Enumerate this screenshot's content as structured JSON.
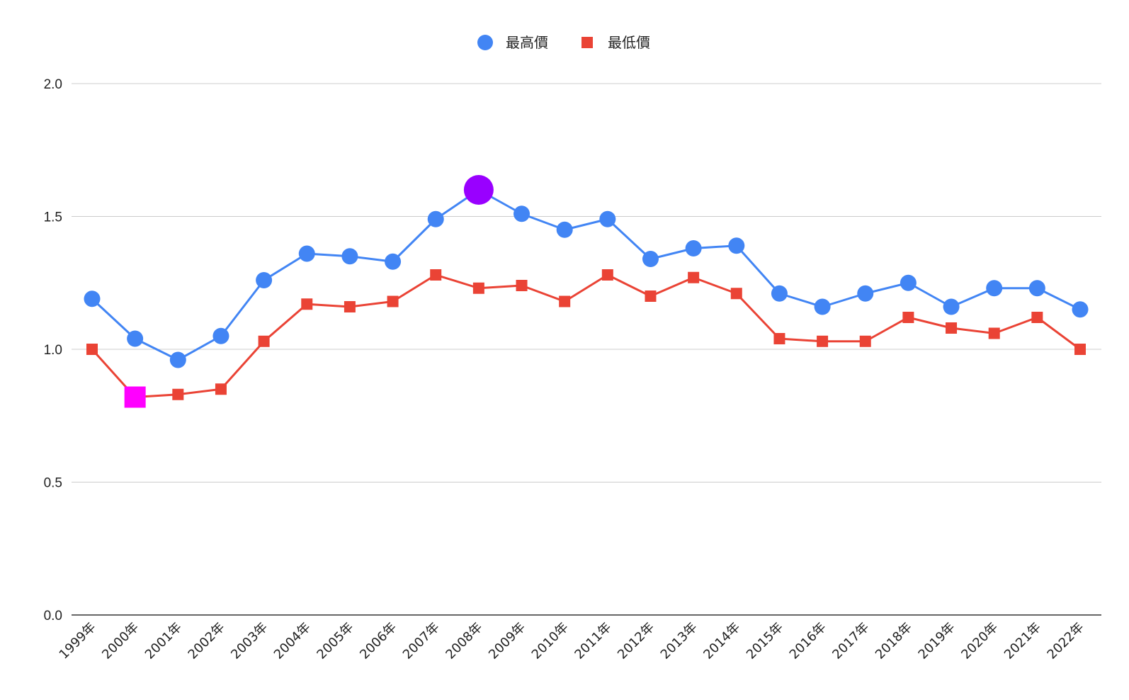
{
  "chart_data": {
    "type": "line",
    "title": "",
    "xlabel": "",
    "ylabel": "",
    "categories": [
      "1999年",
      "2000年",
      "2001年",
      "2002年",
      "2003年",
      "2004年",
      "2005年",
      "2006年",
      "2007年",
      "2008年",
      "2009年",
      "2010年",
      "2011年",
      "2012年",
      "2013年",
      "2014年",
      "2015年",
      "2016年",
      "2017年",
      "2018年",
      "2019年",
      "2020年",
      "2021年",
      "2022年"
    ],
    "series": [
      {
        "name": "最高價",
        "color": "#4285F4",
        "marker": "circle",
        "values": [
          1.19,
          1.04,
          0.96,
          1.05,
          1.26,
          1.36,
          1.35,
          1.33,
          1.49,
          1.6,
          1.51,
          1.45,
          1.49,
          1.34,
          1.38,
          1.39,
          1.21,
          1.16,
          1.21,
          1.25,
          1.16,
          1.23,
          1.23,
          1.15
        ],
        "highlight": {
          "category": "2008年",
          "color": "#9900FF"
        }
      },
      {
        "name": "最低價",
        "color": "#EA4335",
        "marker": "square",
        "values": [
          1.0,
          0.82,
          0.83,
          0.85,
          1.03,
          1.17,
          1.16,
          1.18,
          1.28,
          1.23,
          1.24,
          1.18,
          1.28,
          1.2,
          1.27,
          1.21,
          1.04,
          1.03,
          1.03,
          1.12,
          1.08,
          1.06,
          1.12,
          1.0
        ],
        "highlight": {
          "category": "2000年",
          "color": "#FF00FF"
        }
      }
    ],
    "yticks": [
      "0.0",
      "0.5",
      "1.0",
      "1.5",
      "2.0"
    ],
    "ylim": [
      0,
      2.0
    ],
    "grid": true,
    "legend_position": "top-center"
  }
}
